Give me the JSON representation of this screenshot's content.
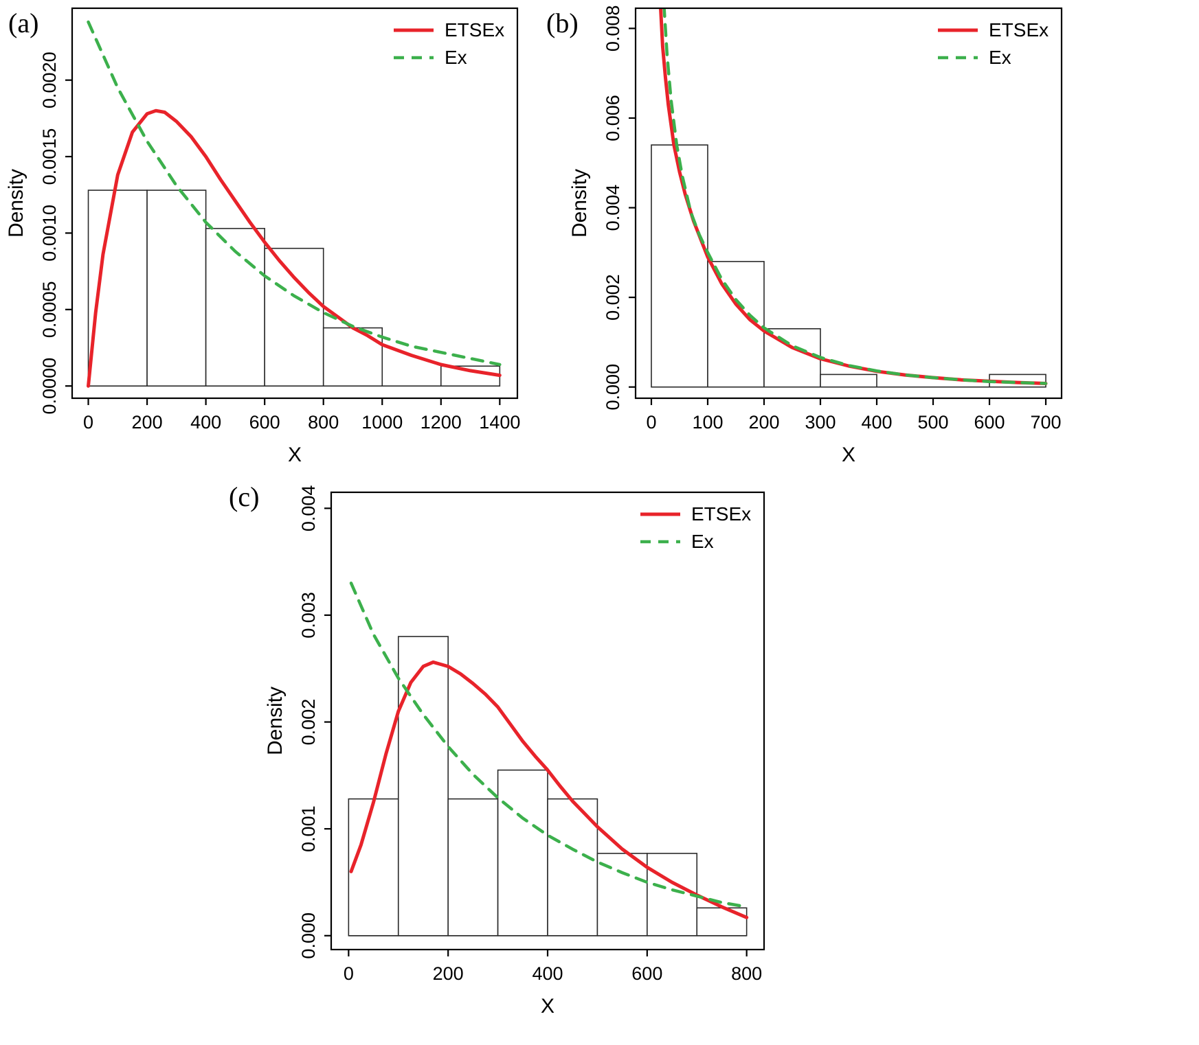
{
  "figure_title": "",
  "colors": {
    "etsex_line": "#e8232a",
    "ex_line": "#3cb04c",
    "histogram_border": "#2a2a2a",
    "axis": "#000000",
    "background": "#ffffff"
  },
  "chart_data": [
    {
      "id": "a",
      "panel_label": "(a)",
      "type": "histogram+lines",
      "xlabel": "X",
      "ylabel": "Density",
      "xlim": [
        -55,
        1460
      ],
      "ylim": [
        -8e-05,
        0.00247
      ],
      "xticks": [
        0,
        200,
        400,
        600,
        800,
        1000,
        1200,
        1400
      ],
      "xtick_labels": [
        "0",
        "200",
        "400",
        "600",
        "800",
        "1000",
        "1200",
        "1400"
      ],
      "yticks": [
        0,
        0.0005,
        0.001,
        0.0015,
        0.002
      ],
      "ytick_labels": [
        "0.0000",
        "0.0005",
        "0.0010",
        "0.0015",
        "0.0020"
      ],
      "legend_position": "top-right",
      "histogram": {
        "bin_start": 0,
        "bin_width": 200,
        "densities": [
          0.00128,
          0.00128,
          0.00103,
          0.0009,
          0.00038,
          0,
          0.00013
        ]
      },
      "series": [
        {
          "name": "ETSEx",
          "color": "#e8232a",
          "dash": "solid",
          "width": 5,
          "x": [
            0,
            25,
            50,
            100,
            150,
            200,
            230,
            260,
            300,
            350,
            400,
            450,
            500,
            550,
            600,
            650,
            700,
            750,
            800,
            850,
            900,
            950,
            1000,
            1100,
            1200,
            1300,
            1400
          ],
          "y": [
            0,
            0.00048,
            0.00086,
            0.00138,
            0.00166,
            0.00178,
            0.0018,
            0.00179,
            0.00173,
            0.00163,
            0.0015,
            0.00135,
            0.00121,
            0.00107,
            0.00094,
            0.00082,
            0.00071,
            0.00061,
            0.00052,
            0.00045,
            0.00038,
            0.00033,
            0.00027,
            0.0002,
            0.00014,
            0.0001,
            7e-05
          ]
        },
        {
          "name": "Ex",
          "color": "#3cb04c",
          "dash": "dashed",
          "width": 4.5,
          "x": [
            0,
            100,
            200,
            300,
            400,
            500,
            600,
            700,
            800,
            900,
            1000,
            1100,
            1200,
            1300,
            1400
          ],
          "y": [
            0.00238,
            0.00195,
            0.0016,
            0.00131,
            0.00107,
            0.00088,
            0.00072,
            0.00059,
            0.00048,
            0.00039,
            0.00032,
            0.00026,
            0.00022,
            0.00018,
            0.00014
          ]
        }
      ]
    },
    {
      "id": "b",
      "panel_label": "(b)",
      "type": "histogram+lines",
      "xlabel": "X",
      "ylabel": "Density",
      "xlim": [
        -28,
        728
      ],
      "ylim": [
        -0.00025,
        0.00845
      ],
      "xticks": [
        0,
        100,
        200,
        300,
        400,
        500,
        600,
        700
      ],
      "xtick_labels": [
        "0",
        "100",
        "200",
        "300",
        "400",
        "500",
        "600",
        "700"
      ],
      "yticks": [
        0,
        0.002,
        0.004,
        0.006,
        0.008
      ],
      "ytick_labels": [
        "0.000",
        "0.002",
        "0.004",
        "0.006",
        "0.008"
      ],
      "legend_position": "top-right",
      "histogram": {
        "bin_start": 0,
        "bin_width": 100,
        "densities": [
          0.0054,
          0.0028,
          0.0013,
          0.00028,
          0,
          0,
          0.00028
        ]
      },
      "series": [
        {
          "name": "ETSEx",
          "color": "#e8232a",
          "dash": "solid",
          "width": 5,
          "x": [
            12,
            15,
            20,
            25,
            30,
            40,
            50,
            60,
            75,
            100,
            125,
            150,
            175,
            200,
            250,
            300,
            350,
            400,
            450,
            500,
            550,
            600,
            650,
            700
          ],
          "y": [
            0.0098,
            0.0088,
            0.0076,
            0.0069,
            0.0063,
            0.0054,
            0.0048,
            0.0043,
            0.0037,
            0.0029,
            0.0023,
            0.00185,
            0.0015,
            0.00125,
            0.00088,
            0.00063,
            0.00047,
            0.00035,
            0.00027,
            0.00021,
            0.00016,
            0.00013,
            0.0001,
            8e-05
          ]
        },
        {
          "name": "Ex",
          "color": "#3cb04c",
          "dash": "dashed",
          "width": 4.5,
          "x": [
            18,
            22,
            28,
            35,
            45,
            55,
            70,
            85,
            100,
            125,
            150,
            175,
            200,
            250,
            300,
            350,
            400,
            450,
            500,
            550,
            600,
            650,
            700
          ],
          "y": [
            0.0098,
            0.0086,
            0.0074,
            0.0064,
            0.0054,
            0.0047,
            0.0039,
            0.0034,
            0.003,
            0.0024,
            0.00195,
            0.0016,
            0.00132,
            0.00092,
            0.00066,
            0.00048,
            0.00036,
            0.00027,
            0.00021,
            0.00016,
            0.00012,
            0.0001,
            8e-05
          ]
        }
      ]
    },
    {
      "id": "c",
      "panel_label": "(c)",
      "type": "histogram+lines",
      "xlabel": "X",
      "ylabel": "Density",
      "xlim": [
        -35,
        835
      ],
      "ylim": [
        -0.00013,
        0.00415
      ],
      "xticks": [
        0,
        200,
        400,
        600,
        800
      ],
      "xtick_labels": [
        "0",
        "200",
        "400",
        "600",
        "800"
      ],
      "yticks": [
        0,
        0.001,
        0.002,
        0.003,
        0.004
      ],
      "ytick_labels": [
        "0.000",
        "0.001",
        "0.002",
        "0.003",
        "0.004"
      ],
      "legend_position": "top-right",
      "histogram": {
        "bin_start": 0,
        "bin_width": 100,
        "densities": [
          0.00128,
          0.0028,
          0.00128,
          0.00155,
          0.00128,
          0.00077,
          0.00077,
          0.00026
        ]
      },
      "series": [
        {
          "name": "ETSEx",
          "color": "#e8232a",
          "dash": "solid",
          "width": 5,
          "x": [
            5,
            25,
            50,
            75,
            100,
            125,
            150,
            170,
            200,
            225,
            250,
            275,
            300,
            325,
            350,
            375,
            400,
            425,
            450,
            475,
            500,
            550,
            600,
            650,
            700,
            750,
            800
          ],
          "y": [
            0.0006,
            0.00085,
            0.00125,
            0.0017,
            0.0021,
            0.00237,
            0.00252,
            0.00256,
            0.00252,
            0.00245,
            0.00236,
            0.00226,
            0.00214,
            0.00198,
            0.00182,
            0.00168,
            0.00155,
            0.0014,
            0.00126,
            0.00114,
            0.00102,
            0.00081,
            0.00064,
            0.0005,
            0.00038,
            0.00027,
            0.00017
          ]
        },
        {
          "name": "Ex",
          "color": "#3cb04c",
          "dash": "dashed",
          "width": 4.5,
          "x": [
            5,
            50,
            100,
            150,
            200,
            250,
            300,
            350,
            400,
            450,
            500,
            550,
            600,
            650,
            700,
            750,
            800
          ],
          "y": [
            0.0033,
            0.00282,
            0.00241,
            0.00207,
            0.00177,
            0.00151,
            0.00129,
            0.0011,
            0.00094,
            0.00081,
            0.00069,
            0.00059,
            0.0005,
            0.00043,
            0.00037,
            0.00031,
            0.00027
          ]
        }
      ]
    }
  ]
}
